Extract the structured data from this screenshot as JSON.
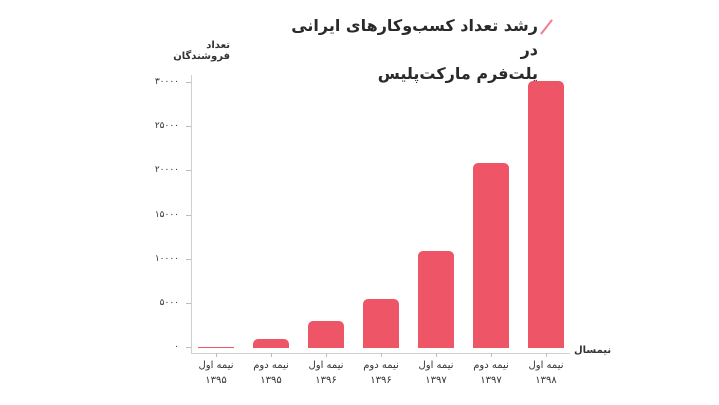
{
  "header": {
    "title_line1": "رشد تعداد کسب‌وکارهای ایرانی در",
    "title_line2": "پلت‌فرم مارکت‌پلیس"
  },
  "axes": {
    "ylabel": "تعداد فروشندگان",
    "xlabel": "نیمسال",
    "yticks": [
      "۳۰۰۰۰",
      "۲۵۰۰۰",
      "۲۰۰۰۰",
      "۱۵۰۰۰",
      "۱۰۰۰۰",
      "۵۰۰۰",
      "۰"
    ]
  },
  "categories": [
    {
      "half": "نیمه اول",
      "year": "۱۳۹۵"
    },
    {
      "half": "نیمه دوم",
      "year": "۱۳۹۵"
    },
    {
      "half": "نیمه اول",
      "year": "۱۳۹۶"
    },
    {
      "half": "نیمه دوم",
      "year": "۱۳۹۶"
    },
    {
      "half": "نیمه اول",
      "year": "۱۳۹۷"
    },
    {
      "half": "نیمه دوم",
      "year": "۱۳۹۷"
    },
    {
      "half": "نیمه اول",
      "year": "۱۳۹۸"
    }
  ],
  "colors": {
    "bar": "#ee5566",
    "accent_slash": "#f27a8c"
  },
  "chart_data": {
    "type": "bar",
    "title": "رشد تعداد کسب‌وکارهای ایرانی در پلت‌فرم مارکت‌پلیس",
    "xlabel": "نیمسال",
    "ylabel": "تعداد فروشندگان",
    "categories": [
      "نیمه اول ۱۳۹۵",
      "نیمه دوم ۱۳۹۵",
      "نیمه اول ۱۳۹۶",
      "نیمه دوم ۱۳۹۶",
      "نیمه اول ۱۳۹۷",
      "نیمه دوم ۱۳۹۷",
      "نیمه اول ۱۳۹۸"
    ],
    "values": [
      100,
      1000,
      3100,
      5600,
      11000,
      21000,
      30200
    ],
    "ylim": [
      0,
      30000
    ],
    "yticks": [
      0,
      5000,
      10000,
      15000,
      20000,
      25000,
      30000
    ],
    "grid": false,
    "legend": null
  }
}
